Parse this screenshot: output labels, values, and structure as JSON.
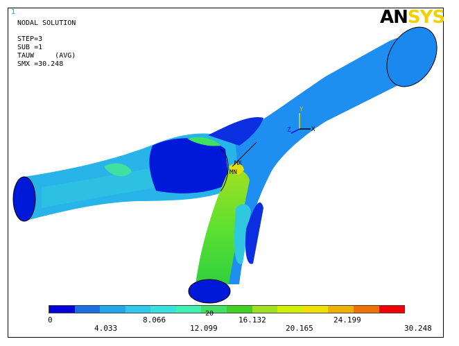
{
  "window_number": "1",
  "header": {
    "title": "NODAL SOLUTION",
    "lines": [
      "STEP=3",
      "SUB =1",
      "TAUW     (AVG)",
      "SMX =30.248"
    ]
  },
  "logo": {
    "part1": "AN",
    "part2": "SYS"
  },
  "axes": {
    "y": "Y",
    "x": "X",
    "z": "Z"
  },
  "markers": {
    "max": "MX",
    "min": "MN"
  },
  "legend": {
    "colors": [
      "#0000d8",
      "#1a6ee0",
      "#22a8e8",
      "#30c8ec",
      "#38e0e0",
      "#40f0b0",
      "#40e060",
      "#40d020",
      "#a0e020",
      "#d0f000",
      "#f0e000",
      "#f0b000",
      "#f07000",
      "#f00000"
    ],
    "labels_top": [
      "0",
      "8.066",
      "16.132",
      "24.199"
    ],
    "labels_bottom": [
      "4.033",
      "12.099",
      "20.165",
      "30.248"
    ],
    "partial": "20"
  }
}
